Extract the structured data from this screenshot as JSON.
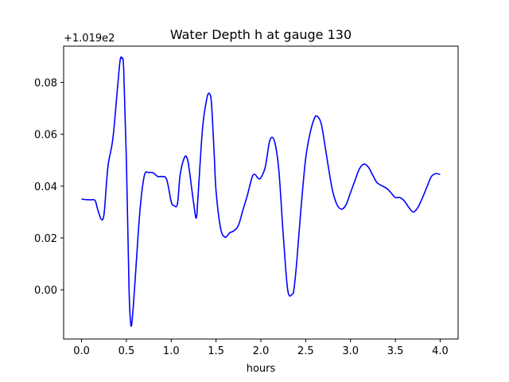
{
  "chart_data": {
    "type": "line",
    "title": "Water Depth h at gauge 130",
    "xlabel": "hours",
    "ylabel": "",
    "y_offset_label": "+1.019e2",
    "xlim": [
      -0.2,
      4.2
    ],
    "ylim": [
      -0.019,
      0.094
    ],
    "x_ticks": [
      0.0,
      0.5,
      1.0,
      1.5,
      2.0,
      2.5,
      3.0,
      3.5,
      4.0
    ],
    "x_tick_labels": [
      "0.0",
      "0.5",
      "1.0",
      "1.5",
      "2.0",
      "2.5",
      "3.0",
      "3.5",
      "4.0"
    ],
    "y_ticks": [
      0.0,
      0.02,
      0.04,
      0.06,
      0.08
    ],
    "y_tick_labels": [
      "0.00",
      "0.02",
      "0.04",
      "0.06",
      "0.08"
    ],
    "grid": false,
    "colors": {
      "line": "#0000ff",
      "axes": "#000000",
      "background": "#ffffff"
    },
    "series": [
      {
        "x": [
          0.0,
          0.05,
          0.1,
          0.15,
          0.18,
          0.22,
          0.25,
          0.28,
          0.3,
          0.35,
          0.4,
          0.43,
          0.45,
          0.47,
          0.5,
          0.53,
          0.55,
          0.57,
          0.6,
          0.65,
          0.7,
          0.75,
          0.8,
          0.85,
          0.9,
          0.95,
          1.0,
          1.03,
          1.07,
          1.1,
          1.15,
          1.18,
          1.2,
          1.25,
          1.28,
          1.3,
          1.35,
          1.4,
          1.43,
          1.45,
          1.48,
          1.5,
          1.55,
          1.6,
          1.65,
          1.7,
          1.75,
          1.8,
          1.85,
          1.9,
          1.93,
          1.97,
          2.0,
          2.05,
          2.1,
          2.15,
          2.2,
          2.25,
          2.3,
          2.35,
          2.37,
          2.4,
          2.45,
          2.5,
          2.55,
          2.6,
          2.63,
          2.67,
          2.7,
          2.75,
          2.8,
          2.85,
          2.9,
          2.95,
          3.0,
          3.05,
          3.1,
          3.15,
          3.2,
          3.25,
          3.3,
          3.4,
          3.45,
          3.5,
          3.55,
          3.6,
          3.65,
          3.7,
          3.75,
          3.8,
          3.85,
          3.9,
          3.95,
          4.0
        ],
        "y": [
          0.035,
          0.0348,
          0.0347,
          0.0345,
          0.031,
          0.0272,
          0.029,
          0.042,
          0.049,
          0.0585,
          0.0775,
          0.0885,
          0.0893,
          0.085,
          0.05,
          0.0,
          -0.0136,
          -0.0095,
          0.005,
          0.03,
          0.044,
          0.0452,
          0.0451,
          0.0437,
          0.0437,
          0.0425,
          0.034,
          0.0325,
          0.0332,
          0.0445,
          0.0512,
          0.0505,
          0.0467,
          0.0335,
          0.0277,
          0.0365,
          0.0625,
          0.0742,
          0.0755,
          0.0715,
          0.052,
          0.0382,
          0.0239,
          0.0203,
          0.0219,
          0.0228,
          0.0249,
          0.0308,
          0.0365,
          0.0432,
          0.0446,
          0.043,
          0.0432,
          0.0475,
          0.0576,
          0.0575,
          0.0463,
          0.021,
          -0.0002,
          -0.0017,
          0.0005,
          0.0107,
          0.0324,
          0.0507,
          0.0606,
          0.0664,
          0.0669,
          0.0645,
          0.059,
          0.048,
          0.0382,
          0.0328,
          0.0311,
          0.0328,
          0.0375,
          0.0422,
          0.0467,
          0.0485,
          0.0473,
          0.0441,
          0.0412,
          0.0392,
          0.0375,
          0.0356,
          0.0356,
          0.0343,
          0.0318,
          0.03,
          0.0317,
          0.0353,
          0.0395,
          0.0436,
          0.0448,
          0.0445
        ]
      }
    ]
  }
}
